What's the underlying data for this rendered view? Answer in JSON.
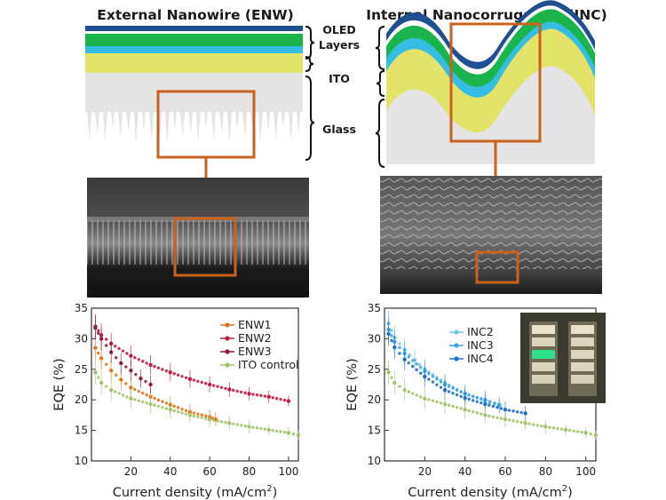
{
  "panels": {
    "enw_title": "External Nanowire (ENW)",
    "inc_title": "Internal Nanocorrugation (INC)"
  },
  "layer_labels": {
    "oled": "OLED",
    "layers": "Layers",
    "ito": "ITO",
    "glass": "Glass"
  },
  "colors": {
    "navy": "#1f4e91",
    "green": "#1bb34b",
    "cyan": "#36bde3",
    "yellow": "#e3e36a",
    "glass": "#e4e4e4",
    "highlight": "#c8621d"
  },
  "chart_data": [
    {
      "type": "scatter",
      "xlabel": "Current density (mA/cm",
      "xlabel_sup": "2",
      "xlabel_end": ")",
      "ylabel": "EQE (%)",
      "xlim": [
        0,
        105
      ],
      "ylim": [
        10,
        35
      ],
      "xticks": [
        20,
        40,
        60,
        80,
        100
      ],
      "yticks": [
        10,
        15,
        20,
        25,
        30,
        35
      ],
      "series": [
        {
          "name": "ENW1",
          "color": "#e5731b",
          "x": [
            2,
            5,
            10,
            15,
            20,
            30,
            40,
            50,
            60,
            63
          ],
          "y": [
            28.5,
            26.8,
            24.8,
            23.3,
            22.0,
            20.5,
            19.2,
            18.0,
            17.2,
            16.8
          ]
        },
        {
          "name": "ENW2",
          "color": "#c01d45",
          "x": [
            2,
            5,
            10,
            20,
            30,
            40,
            50,
            60,
            70,
            80,
            90,
            100
          ],
          "y": [
            32,
            30.6,
            29.2,
            27.2,
            25.7,
            24.5,
            23.4,
            22.5,
            21.7,
            21.0,
            20.5,
            19.8
          ]
        },
        {
          "name": "ENW3",
          "color": "#8e1c3c",
          "x": [
            2,
            5,
            10,
            15,
            20,
            25,
            30
          ],
          "y": [
            31.8,
            30,
            27.8,
            26.0,
            24.8,
            23.5,
            22.5
          ]
        },
        {
          "name": "ITO control",
          "color": "#a3c46c",
          "x": [
            2,
            5,
            10,
            20,
            30,
            40,
            50,
            60,
            70,
            80,
            90,
            100,
            105
          ],
          "y": [
            24.5,
            22.8,
            21.6,
            20.2,
            19.3,
            18.4,
            17.5,
            16.8,
            16.2,
            15.6,
            15.1,
            14.6,
            14.2
          ]
        }
      ]
    },
    {
      "type": "scatter",
      "xlabel": "Current density (mA/cm",
      "xlabel_sup": "2",
      "xlabel_end": ")",
      "ylabel": "EQE (%)",
      "xlim": [
        0,
        105
      ],
      "ylim": [
        10,
        35
      ],
      "xticks": [
        20,
        40,
        60,
        80,
        100
      ],
      "yticks": [
        10,
        15,
        20,
        25,
        30,
        35
      ],
      "series": [
        {
          "name": "INC2",
          "color": "#6ec6e8",
          "x": [
            2,
            5,
            10,
            15,
            20,
            30,
            40,
            50,
            57
          ],
          "y": [
            32.5,
            30.2,
            28.2,
            26.5,
            25.0,
            22.8,
            21.0,
            19.8,
            19.0
          ]
        },
        {
          "name": "INC3",
          "color": "#3fa2df",
          "x": [
            2,
            5,
            10,
            20,
            30,
            40,
            50,
            57
          ],
          "y": [
            31.5,
            29.5,
            27.6,
            24.7,
            22.5,
            21.0,
            20.0,
            19.2
          ]
        },
        {
          "name": "INC4",
          "color": "#1f6fc6",
          "x": [
            2,
            5,
            10,
            20,
            30,
            40,
            50,
            60,
            70
          ],
          "y": [
            30.8,
            28.6,
            26.6,
            23.8,
            21.6,
            20.3,
            19.3,
            18.4,
            17.8
          ]
        },
        {
          "name": "",
          "color": "#a3c46c",
          "x": [
            2,
            5,
            10,
            20,
            30,
            40,
            50,
            60,
            70,
            80,
            90,
            100,
            105
          ],
          "y": [
            24.5,
            22.8,
            21.6,
            20.2,
            19.3,
            18.4,
            17.5,
            16.8,
            16.2,
            15.6,
            15.1,
            14.6,
            14.2
          ]
        }
      ]
    }
  ]
}
